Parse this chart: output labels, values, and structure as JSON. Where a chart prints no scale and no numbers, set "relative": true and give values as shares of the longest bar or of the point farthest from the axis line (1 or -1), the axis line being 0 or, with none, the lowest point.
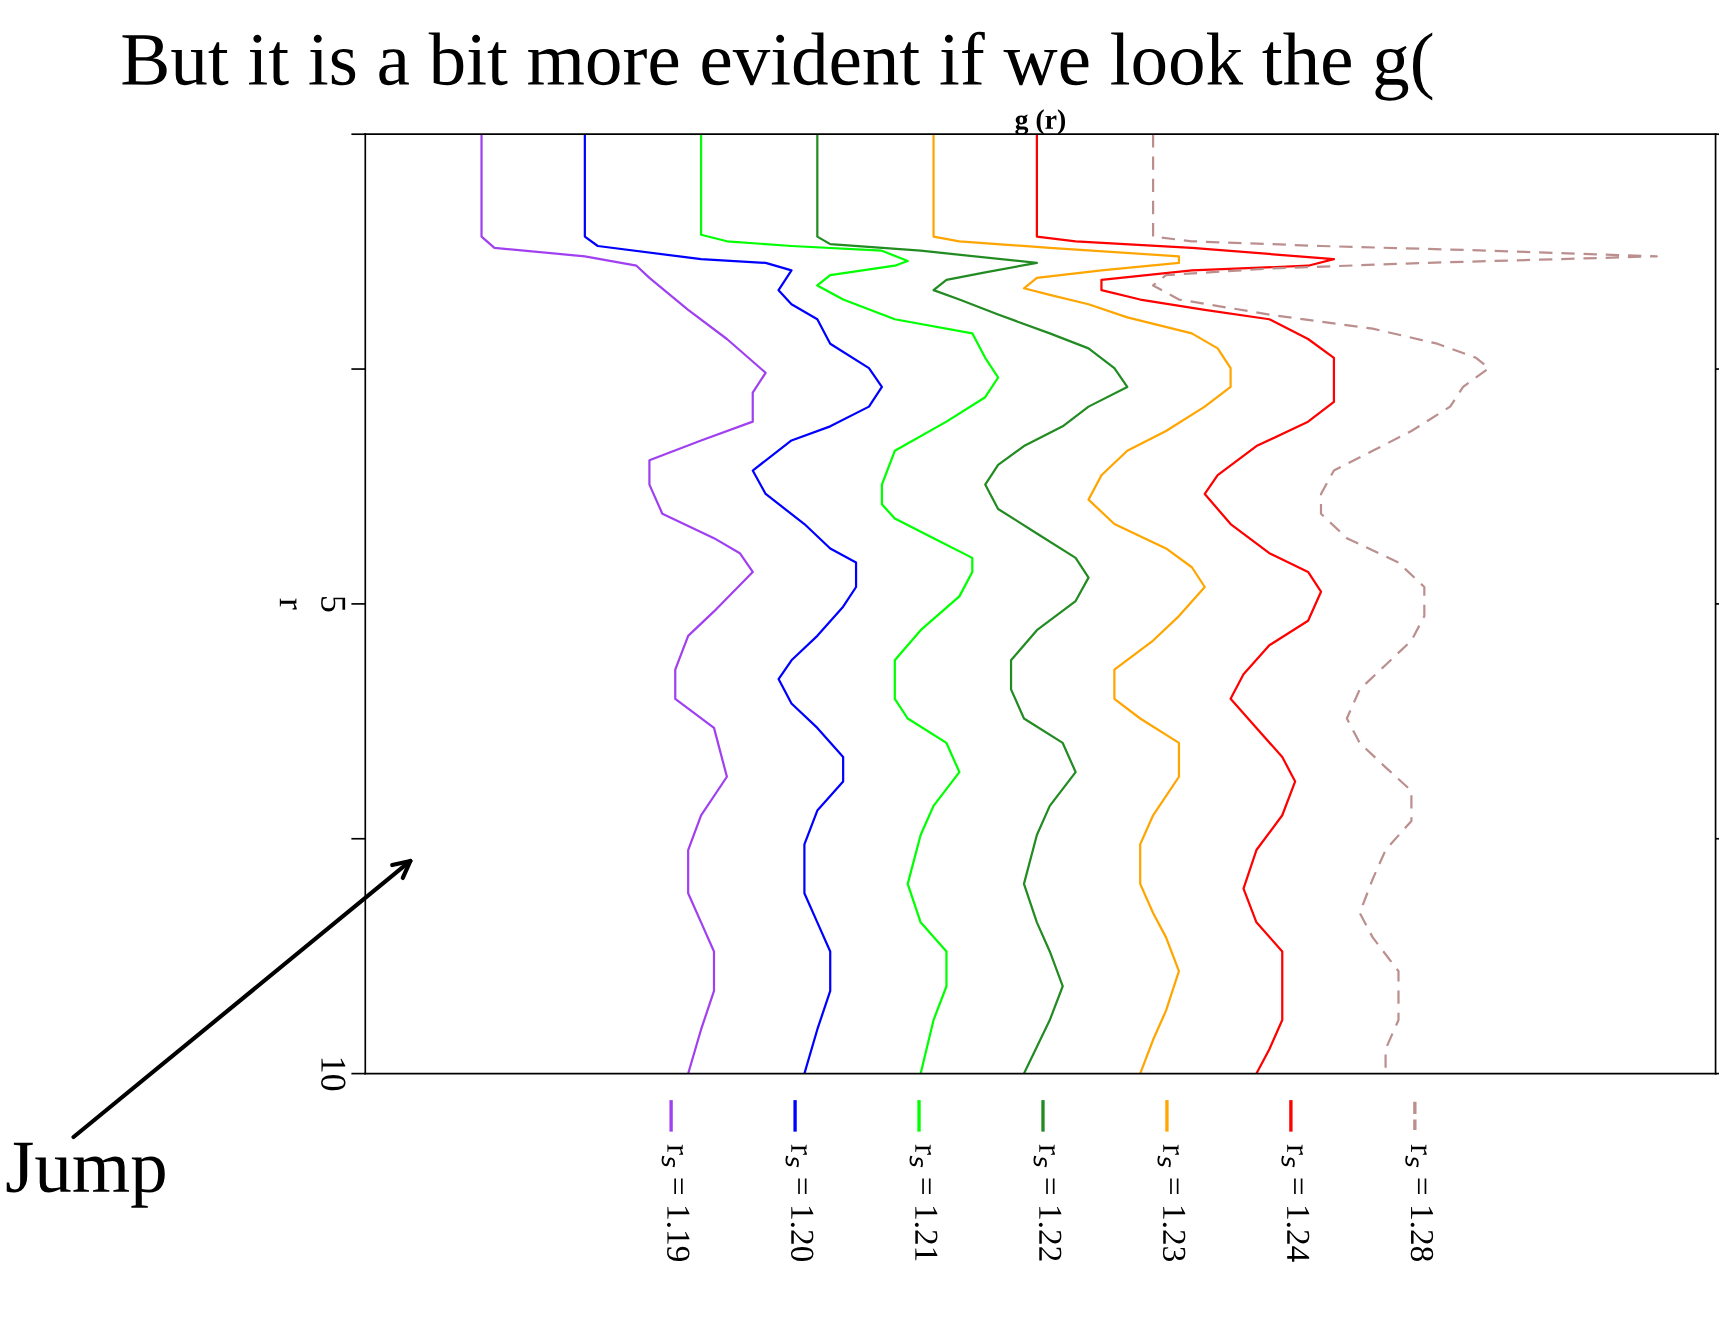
{
  "chart_data": {
    "type": "line",
    "title": "But it is a bit more evident if we look the g(",
    "xlabel": "g (r)",
    "ylabel": "r",
    "relative": true,
    "orientation": "horizontal",
    "ylim": [
      10,
      0
    ],
    "yticks": [
      {
        "value": 0,
        "label": null
      },
      {
        "value": 2.5,
        "label": null
      },
      5,
      {
        "value": 7.5,
        "label": null
      },
      10
    ],
    "legend": "bottom",
    "grid": false,
    "marker": "none",
    "annotations": [
      "Jump"
    ],
    "series": [
      {
        "name": "r$_{s}$ = 1.19",
        "color": "#a040f0",
        "x": [
          0,
          1.09,
          1.21,
          1.3,
          1.4,
          1.53,
          1.87,
          2.18,
          2.54,
          2.75,
          3.06,
          3.26,
          3.47,
          3.73,
          4.04,
          4.3,
          4.46,
          4.66,
          5.08,
          5.34,
          5.7,
          6.01,
          6.32,
          6.84,
          7.25,
          7.62,
          8.08,
          8.39,
          8.7,
          9.12,
          9.53,
          10
        ],
        "values": [
          0.09,
          0.09,
          0.1,
          0.17,
          0.21,
          0.22,
          0.25,
          0.28,
          0.31,
          0.3,
          0.3,
          0.26,
          0.22,
          0.22,
          0.23,
          0.27,
          0.29,
          0.3,
          0.27,
          0.25,
          0.24,
          0.24,
          0.27,
          0.28,
          0.26,
          0.25,
          0.25,
          0.26,
          0.27,
          0.27,
          0.26,
          0.25
        ]
      },
      {
        "name": "r$_{s}$ = 1.20",
        "color": "#0000ff",
        "x": [
          0,
          1.09,
          1.19,
          1.33,
          1.37,
          1.45,
          1.66,
          1.81,
          1.97,
          2.23,
          2.49,
          2.69,
          2.9,
          3.11,
          3.26,
          3.58,
          3.83,
          4.15,
          4.41,
          4.56,
          4.82,
          5.03,
          5.34,
          5.6,
          5.8,
          6.06,
          6.32,
          6.63,
          6.89,
          7.2,
          7.56,
          8.08,
          8.39,
          8.7,
          9.12,
          9.53,
          10
        ],
        "values": [
          0.17,
          0.17,
          0.18,
          0.26,
          0.31,
          0.33,
          0.32,
          0.33,
          0.35,
          0.36,
          0.39,
          0.4,
          0.39,
          0.36,
          0.33,
          0.3,
          0.31,
          0.34,
          0.36,
          0.38,
          0.38,
          0.37,
          0.35,
          0.33,
          0.32,
          0.33,
          0.35,
          0.37,
          0.37,
          0.35,
          0.34,
          0.34,
          0.35,
          0.36,
          0.36,
          0.35,
          0.34
        ]
      },
      {
        "name": "r$_{s}$ = 1.21",
        "color": "#00ff00",
        "x": [
          0,
          1.07,
          1.14,
          1.19,
          1.24,
          1.35,
          1.4,
          1.5,
          1.61,
          1.76,
          1.97,
          2.12,
          2.38,
          2.59,
          2.8,
          3.06,
          3.37,
          3.73,
          3.94,
          4.09,
          4.3,
          4.51,
          4.66,
          4.92,
          5.28,
          5.6,
          6.01,
          6.22,
          6.48,
          6.79,
          7.15,
          7.46,
          7.98,
          8.39,
          8.7,
          9.07,
          9.43,
          10
        ],
        "values": [
          0.26,
          0.26,
          0.28,
          0.33,
          0.4,
          0.42,
          0.41,
          0.36,
          0.35,
          0.37,
          0.41,
          0.47,
          0.48,
          0.49,
          0.48,
          0.45,
          0.41,
          0.4,
          0.4,
          0.41,
          0.44,
          0.47,
          0.47,
          0.46,
          0.43,
          0.41,
          0.41,
          0.42,
          0.45,
          0.46,
          0.44,
          0.43,
          0.42,
          0.43,
          0.45,
          0.45,
          0.44,
          0.43
        ]
      },
      {
        "name": "r$_{s}$ = 1.22",
        "color": "#228b22",
        "x": [
          0,
          1.09,
          1.17,
          1.24,
          1.37,
          1.47,
          1.55,
          1.66,
          1.76,
          1.92,
          2.12,
          2.28,
          2.49,
          2.69,
          2.9,
          3.11,
          3.32,
          3.52,
          3.73,
          3.99,
          4.25,
          4.51,
          4.72,
          4.97,
          5.28,
          5.6,
          5.91,
          6.22,
          6.48,
          6.79,
          7.15,
          7.46,
          7.98,
          8.39,
          8.7,
          9.07,
          9.43,
          10
        ],
        "values": [
          0.35,
          0.35,
          0.36,
          0.43,
          0.52,
          0.48,
          0.45,
          0.44,
          0.46,
          0.49,
          0.53,
          0.56,
          0.58,
          0.59,
          0.56,
          0.54,
          0.51,
          0.49,
          0.48,
          0.49,
          0.52,
          0.55,
          0.56,
          0.55,
          0.52,
          0.5,
          0.5,
          0.51,
          0.54,
          0.55,
          0.53,
          0.52,
          0.51,
          0.52,
          0.53,
          0.54,
          0.53,
          0.51
        ]
      },
      {
        "name": "r$_{s}$ = 1.23",
        "color": "#ffa500",
        "x": [
          0,
          1.09,
          1.14,
          1.21,
          1.3,
          1.37,
          1.45,
          1.53,
          1.64,
          1.71,
          1.81,
          1.95,
          2.12,
          2.28,
          2.49,
          2.69,
          2.9,
          3.16,
          3.37,
          3.63,
          3.89,
          4.15,
          4.41,
          4.61,
          4.82,
          5.13,
          5.39,
          5.7,
          6.01,
          6.22,
          6.48,
          6.84,
          7.25,
          7.56,
          7.98,
          8.29,
          8.55,
          8.91,
          9.33,
          9.64,
          10
        ],
        "values": [
          0.44,
          0.44,
          0.46,
          0.53,
          0.63,
          0.63,
          0.57,
          0.52,
          0.51,
          0.53,
          0.56,
          0.59,
          0.64,
          0.66,
          0.67,
          0.67,
          0.65,
          0.62,
          0.59,
          0.57,
          0.56,
          0.58,
          0.62,
          0.64,
          0.65,
          0.63,
          0.61,
          0.58,
          0.58,
          0.6,
          0.63,
          0.63,
          0.61,
          0.6,
          0.6,
          0.61,
          0.62,
          0.63,
          0.62,
          0.61,
          0.6
        ]
      },
      {
        "name": "r$_{s}$ = 1.24",
        "color": "#ff0000",
        "x": [
          0,
          1.09,
          1.14,
          1.21,
          1.33,
          1.4,
          1.45,
          1.55,
          1.66,
          1.76,
          1.87,
          1.97,
          2.18,
          2.38,
          2.59,
          2.85,
          3.06,
          3.32,
          3.63,
          3.83,
          4.15,
          4.46,
          4.66,
          4.87,
          5.18,
          5.44,
          5.75,
          6.01,
          6.32,
          6.63,
          6.89,
          7.25,
          7.62,
          8.03,
          8.39,
          8.7,
          9.07,
          9.43,
          9.74,
          10
        ],
        "values": [
          0.52,
          0.52,
          0.55,
          0.64,
          0.75,
          0.73,
          0.64,
          0.57,
          0.57,
          0.6,
          0.65,
          0.7,
          0.73,
          0.75,
          0.75,
          0.75,
          0.73,
          0.69,
          0.66,
          0.65,
          0.67,
          0.7,
          0.73,
          0.74,
          0.73,
          0.7,
          0.68,
          0.67,
          0.69,
          0.71,
          0.72,
          0.71,
          0.69,
          0.68,
          0.69,
          0.71,
          0.71,
          0.71,
          0.7,
          0.69
        ]
      },
      {
        "name": "r$_{s}$ = 1.28",
        "color": "#bc8f8f",
        "line_style": "dashed",
        "x": [
          0,
          1.09,
          1.14,
          1.19,
          1.24,
          1.3,
          1.37,
          1.43,
          1.5,
          1.61,
          1.76,
          1.92,
          2.07,
          2.23,
          2.38,
          2.49,
          2.69,
          2.9,
          3.16,
          3.37,
          3.58,
          3.83,
          4.04,
          4.3,
          4.56,
          4.82,
          5.13,
          5.39,
          5.65,
          5.91,
          6.22,
          6.48,
          6.74,
          6.99,
          7.31,
          7.62,
          7.93,
          8.29,
          8.55,
          8.91,
          9.43,
          9.74,
          10
        ],
        "values": [
          0.61,
          0.61,
          0.64,
          0.74,
          0.87,
          1,
          0.82,
          0.7,
          0.62,
          0.61,
          0.63,
          0.7,
          0.78,
          0.83,
          0.86,
          0.87,
          0.85,
          0.84,
          0.81,
          0.78,
          0.75,
          0.74,
          0.74,
          0.76,
          0.8,
          0.82,
          0.82,
          0.81,
          0.79,
          0.77,
          0.76,
          0.77,
          0.79,
          0.81,
          0.81,
          0.79,
          0.78,
          0.77,
          0.78,
          0.8,
          0.8,
          0.79,
          0.79
        ]
      }
    ]
  }
}
